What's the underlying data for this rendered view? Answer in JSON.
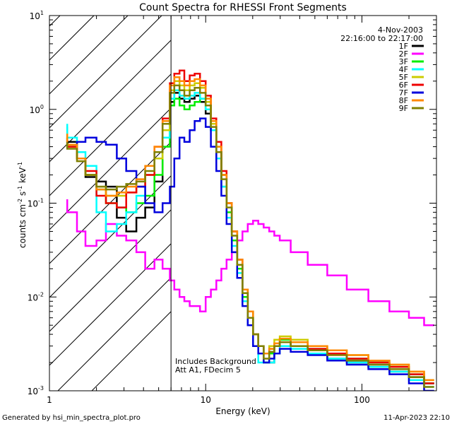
{
  "chart_data": {
    "type": "line",
    "title": "Count Spectra for RHESSI Front Segments",
    "xlabel": "Energy (keV)",
    "ylabel": {
      "prefix": "counts cm",
      "e1": "-2",
      "mid1": " s",
      "e2": "-1",
      "mid2": " keV",
      "e3": "-1"
    },
    "xscale": "log",
    "yscale": "log",
    "xlim": [
      1,
      300
    ],
    "ylim": [
      0.001,
      10
    ],
    "x_ticks": [
      {
        "value": 1,
        "label": "1"
      },
      {
        "value": 10,
        "label": "10"
      },
      {
        "value": 100,
        "label": "100"
      }
    ],
    "y_ticks": [
      {
        "value": 0.001,
        "base": "10",
        "exp": "-3"
      },
      {
        "value": 0.01,
        "base": "10",
        "exp": "-2"
      },
      {
        "value": 0.1,
        "base": "10",
        "exp": "-1"
      },
      {
        "value": 1,
        "base": "10",
        "exp": "0"
      },
      {
        "value": 10,
        "base": "10",
        "exp": "1"
      }
    ],
    "date": "4-Nov-2003",
    "time_range": "22:16:00 to 22:17:00",
    "annotations": [
      "Includes Background",
      "Att A1, FDecim  5"
    ],
    "attenuator_edge_kev": 6,
    "hatched_region": [
      1,
      6
    ],
    "footer_left": "Generated by hsi_min_spectra_plot.pro",
    "footer_right": "11-Apr-2023 22:10",
    "series": [
      {
        "name": "1F",
        "color": "#000000",
        "x": [
          1.3,
          1.5,
          1.7,
          2.0,
          2.3,
          2.7,
          3.1,
          3.6,
          4.1,
          4.7,
          5.3,
          5.9,
          6.3,
          6.8,
          7.3,
          7.9,
          8.5,
          9.2,
          10.0,
          10.8,
          11.7,
          12.6,
          13.6,
          14.7,
          15.9,
          17.2,
          18.6,
          20.1,
          21.7,
          23.5,
          25.5,
          27.5,
          29.8,
          35,
          45,
          60,
          80,
          110,
          150,
          200,
          250,
          290
        ],
        "y": [
          0.5,
          0.45,
          0.3,
          0.19,
          0.17,
          0.15,
          0.07,
          0.05,
          0.07,
          0.09,
          0.17,
          0.5,
          1.2,
          1.5,
          1.3,
          1.2,
          1.3,
          1.4,
          1.2,
          0.9,
          0.6,
          0.35,
          0.2,
          0.1,
          0.05,
          0.025,
          0.012,
          0.007,
          0.004,
          0.003,
          0.002,
          0.002,
          0.003,
          0.003,
          0.003,
          0.0025,
          0.0022,
          0.002,
          0.0018,
          0.0016,
          0.0014,
          0.0012
        ]
      },
      {
        "name": "2F",
        "color": "#ff00ff",
        "x": [
          1.3,
          1.5,
          1.7,
          2.0,
          2.3,
          2.7,
          3.1,
          3.6,
          4.1,
          4.7,
          5.3,
          5.9,
          6.3,
          6.8,
          7.3,
          7.9,
          8.5,
          9.2,
          10.0,
          10.8,
          11.7,
          12.6,
          13.6,
          14.7,
          15.9,
          17.2,
          18.6,
          20.1,
          21.7,
          23.5,
          25.5,
          27.5,
          29.8,
          35,
          45,
          60,
          80,
          110,
          150,
          200,
          250,
          290
        ],
        "y": [
          0.11,
          0.08,
          0.05,
          0.035,
          0.04,
          0.06,
          0.045,
          0.04,
          0.03,
          0.02,
          0.025,
          0.02,
          0.015,
          0.012,
          0.01,
          0.009,
          0.008,
          0.008,
          0.007,
          0.01,
          0.012,
          0.015,
          0.02,
          0.025,
          0.03,
          0.04,
          0.05,
          0.06,
          0.065,
          0.06,
          0.055,
          0.05,
          0.045,
          0.04,
          0.03,
          0.022,
          0.017,
          0.012,
          0.009,
          0.007,
          0.006,
          0.005
        ]
      },
      {
        "name": "3F",
        "color": "#00ee00",
        "x": [
          1.3,
          1.5,
          1.7,
          2.0,
          2.3,
          2.7,
          3.1,
          3.6,
          4.1,
          4.7,
          5.3,
          5.9,
          6.3,
          6.8,
          7.3,
          7.9,
          8.5,
          9.2,
          10.0,
          10.8,
          11.7,
          12.6,
          13.6,
          14.7,
          15.9,
          17.2,
          18.6,
          20.1,
          21.7,
          23.5,
          25.5,
          27.5,
          29.8,
          35,
          45,
          60,
          80,
          110,
          150,
          200,
          250,
          290
        ],
        "y": [
          0.65,
          0.4,
          0.3,
          0.2,
          0.14,
          0.1,
          0.09,
          0.08,
          0.1,
          0.12,
          0.2,
          0.4,
          1.1,
          1.3,
          1.1,
          1.0,
          1.1,
          1.2,
          1.3,
          1.0,
          0.6,
          0.3,
          0.15,
          0.08,
          0.04,
          0.02,
          0.01,
          0.006,
          0.004,
          0.003,
          0.002,
          0.0025,
          0.003,
          0.0035,
          0.003,
          0.0028,
          0.0025,
          0.0022,
          0.002,
          0.0018,
          0.0015,
          0.0012
        ]
      },
      {
        "name": "4F",
        "color": "#00ffff",
        "x": [
          1.3,
          1.5,
          1.7,
          2.0,
          2.3,
          2.7,
          3.1,
          3.6,
          4.1,
          4.7,
          5.3,
          5.9,
          6.3,
          6.8,
          7.3,
          7.9,
          8.5,
          9.2,
          10.0,
          10.8,
          11.7,
          12.6,
          13.6,
          14.7,
          15.9,
          17.2,
          18.6,
          20.1,
          21.7,
          23.5,
          25.5,
          27.5,
          29.8,
          35,
          45,
          60,
          80,
          110,
          150,
          200,
          250,
          290
        ],
        "y": [
          0.7,
          0.5,
          0.35,
          0.25,
          0.08,
          0.05,
          0.06,
          0.08,
          0.12,
          0.2,
          0.3,
          0.5,
          1.3,
          1.6,
          1.4,
          1.3,
          1.4,
          1.5,
          1.3,
          1.0,
          0.6,
          0.3,
          0.15,
          0.07,
          0.035,
          0.018,
          0.009,
          0.005,
          0.003,
          0.002,
          0.002,
          0.002,
          0.0025,
          0.003,
          0.0028,
          0.0025,
          0.0022,
          0.002,
          0.0018,
          0.0016,
          0.0013,
          0.0011
        ]
      },
      {
        "name": "5F",
        "color": "#cccc00",
        "x": [
          1.3,
          1.5,
          1.7,
          2.0,
          2.3,
          2.7,
          3.1,
          3.6,
          4.1,
          4.7,
          5.3,
          5.9,
          6.3,
          6.8,
          7.3,
          7.9,
          8.5,
          9.2,
          10.0,
          10.8,
          11.7,
          12.6,
          13.6,
          14.7,
          15.9,
          17.2,
          18.6,
          20.1,
          21.7,
          23.5,
          25.5,
          27.5,
          29.8,
          35,
          45,
          60,
          80,
          110,
          150,
          200,
          250,
          290
        ],
        "y": [
          0.55,
          0.4,
          0.3,
          0.2,
          0.15,
          0.12,
          0.12,
          0.13,
          0.15,
          0.2,
          0.3,
          0.6,
          1.6,
          2.0,
          1.8,
          1.6,
          1.8,
          1.9,
          1.7,
          1.2,
          0.7,
          0.4,
          0.2,
          0.1,
          0.05,
          0.025,
          0.012,
          0.007,
          0.004,
          0.003,
          0.0025,
          0.003,
          0.0035,
          0.0038,
          0.0035,
          0.003,
          0.0027,
          0.0024,
          0.0021,
          0.0019,
          0.0016,
          0.0013
        ]
      },
      {
        "name": "6F",
        "color": "#ee0000",
        "x": [
          1.3,
          1.5,
          1.7,
          2.0,
          2.3,
          2.7,
          3.1,
          3.6,
          4.1,
          4.7,
          5.3,
          5.9,
          6.3,
          6.8,
          7.3,
          7.9,
          8.5,
          9.2,
          10.0,
          10.8,
          11.7,
          12.6,
          13.6,
          14.7,
          15.9,
          17.2,
          18.6,
          20.1,
          21.7,
          23.5,
          25.5,
          27.5,
          29.8,
          35,
          45,
          60,
          80,
          110,
          150,
          200,
          250,
          290
        ],
        "y": [
          0.5,
          0.4,
          0.3,
          0.22,
          0.12,
          0.1,
          0.09,
          0.13,
          0.15,
          0.2,
          0.4,
          0.8,
          1.9,
          2.4,
          2.6,
          2.0,
          2.3,
          2.4,
          2.0,
          1.4,
          0.8,
          0.45,
          0.22,
          0.1,
          0.05,
          0.025,
          0.012,
          0.006,
          0.004,
          0.003,
          0.0025,
          0.0028,
          0.003,
          0.0033,
          0.003,
          0.0028,
          0.0025,
          0.0022,
          0.002,
          0.0018,
          0.0015,
          0.0012
        ]
      },
      {
        "name": "7F",
        "color": "#0000dd",
        "x": [
          1.3,
          1.5,
          1.7,
          2.0,
          2.3,
          2.7,
          3.1,
          3.6,
          4.1,
          4.7,
          5.3,
          5.9,
          6.3,
          6.8,
          7.3,
          7.9,
          8.5,
          9.2,
          10.0,
          10.8,
          11.7,
          12.6,
          13.6,
          14.7,
          15.9,
          17.2,
          18.6,
          20.1,
          21.7,
          23.5,
          25.5,
          27.5,
          29.8,
          35,
          45,
          60,
          80,
          110,
          150,
          200,
          250,
          290
        ],
        "y": [
          0.43,
          0.42,
          0.45,
          0.5,
          0.45,
          0.42,
          0.3,
          0.22,
          0.15,
          0.1,
          0.08,
          0.1,
          0.15,
          0.3,
          0.5,
          0.45,
          0.6,
          0.75,
          0.8,
          0.65,
          0.4,
          0.22,
          0.12,
          0.06,
          0.03,
          0.016,
          0.008,
          0.005,
          0.003,
          0.0025,
          0.002,
          0.0022,
          0.0025,
          0.0028,
          0.0026,
          0.0024,
          0.0021,
          0.0019,
          0.0017,
          0.0015,
          0.0012,
          0.001
        ]
      },
      {
        "name": "8F",
        "color": "#ff8800",
        "x": [
          1.3,
          1.5,
          1.7,
          2.0,
          2.3,
          2.7,
          3.1,
          3.6,
          4.1,
          4.7,
          5.3,
          5.9,
          6.3,
          6.8,
          7.3,
          7.9,
          8.5,
          9.2,
          10.0,
          10.8,
          11.7,
          12.6,
          13.6,
          14.7,
          15.9,
          17.2,
          18.6,
          20.1,
          21.7,
          23.5,
          25.5,
          27.5,
          29.8,
          35,
          45,
          60,
          80,
          110,
          150,
          200,
          250,
          290
        ],
        "y": [
          0.55,
          0.42,
          0.3,
          0.2,
          0.14,
          0.12,
          0.13,
          0.15,
          0.18,
          0.25,
          0.4,
          0.75,
          1.8,
          2.2,
          2.0,
          1.8,
          2.0,
          2.1,
          1.8,
          1.3,
          0.75,
          0.4,
          0.2,
          0.1,
          0.05,
          0.025,
          0.012,
          0.007,
          0.004,
          0.003,
          0.0025,
          0.0028,
          0.0032,
          0.0036,
          0.0033,
          0.003,
          0.0027,
          0.0024,
          0.0021,
          0.0019,
          0.0016,
          0.0013
        ]
      },
      {
        "name": "9F",
        "color": "#808000",
        "x": [
          1.3,
          1.5,
          1.7,
          2.0,
          2.3,
          2.7,
          3.1,
          3.6,
          4.1,
          4.7,
          5.3,
          5.9,
          6.3,
          6.8,
          7.3,
          7.9,
          8.5,
          9.2,
          10.0,
          10.8,
          11.7,
          12.6,
          13.6,
          14.7,
          15.9,
          17.2,
          18.6,
          20.1,
          21.7,
          23.5,
          25.5,
          27.5,
          29.8,
          35,
          45,
          60,
          80,
          110,
          150,
          200,
          250,
          290
        ],
        "y": [
          0.45,
          0.38,
          0.28,
          0.2,
          0.15,
          0.14,
          0.15,
          0.16,
          0.17,
          0.22,
          0.35,
          0.7,
          1.5,
          1.8,
          1.6,
          1.4,
          1.6,
          1.7,
          1.5,
          1.1,
          0.65,
          0.35,
          0.18,
          0.09,
          0.045,
          0.022,
          0.011,
          0.006,
          0.004,
          0.003,
          0.0022,
          0.0026,
          0.003,
          0.0033,
          0.003,
          0.0027,
          0.0024,
          0.0021,
          0.0019,
          0.0017,
          0.0014,
          0.0011
        ]
      }
    ]
  }
}
